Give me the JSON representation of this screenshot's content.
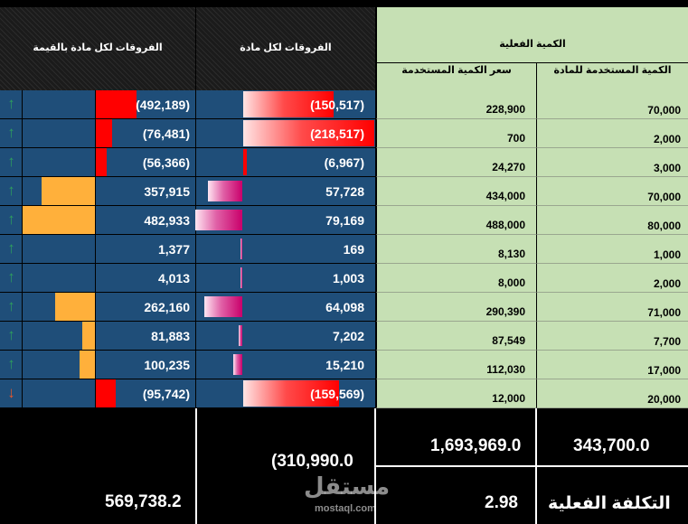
{
  "headers": {
    "diff_value": "الفروقات لكل مادة بالقيمة",
    "diff_qty": "الفروقات لكل مادة",
    "actual_qty": "الكمية الفعلية",
    "price_used": "سعر الكمية المستخدمة",
    "qty_used": "الكمية المستخدمة للمادة"
  },
  "rows": [
    {
      "arrow": "up",
      "value_diff": "(492,189)",
      "value_frac": 0.41,
      "value_type": "red",
      "qty_diff": "(150,517)",
      "qty_frac": 0.69,
      "qty_type": "gradred",
      "price": "228,900",
      "qty": "70,000"
    },
    {
      "arrow": "up",
      "value_diff": "(76,481)",
      "value_frac": 0.16,
      "value_type": "red",
      "qty_diff": "(218,517)",
      "qty_frac": 1.0,
      "qty_type": "gradred",
      "price": "700",
      "qty": "2,000"
    },
    {
      "arrow": "up",
      "value_diff": "(56,366)",
      "value_frac": 0.11,
      "value_type": "red",
      "qty_diff": "(6,967)",
      "qty_frac": 0.03,
      "qty_type": "red",
      "price": "24,270",
      "qty": "3,000"
    },
    {
      "arrow": "up",
      "value_diff": "357,915",
      "value_frac": 0.74,
      "value_type": "orange",
      "qty_diff": "57,728",
      "qty_frac": 0.26,
      "qty_type": "gradpink",
      "price": "434,000",
      "qty": "70,000"
    },
    {
      "arrow": "up",
      "value_diff": "482,933",
      "value_frac": 1.0,
      "value_type": "orange",
      "qty_diff": "79,169",
      "qty_frac": 0.36,
      "qty_type": "gradpink",
      "price": "488,000",
      "qty": "80,000"
    },
    {
      "arrow": "up",
      "value_diff": "1,377",
      "value_frac": 0.0,
      "value_type": "orange",
      "qty_diff": "169",
      "qty_frac": 0.0,
      "qty_type": "gradpink",
      "price": "8,130",
      "qty": "1,000"
    },
    {
      "arrow": "up",
      "value_diff": "4,013",
      "value_frac": 0.0,
      "value_type": "orange",
      "qty_diff": "1,003",
      "qty_frac": 0.0,
      "qty_type": "gradpink",
      "price": "8,000",
      "qty": "2,000"
    },
    {
      "arrow": "up",
      "value_diff": "262,160",
      "value_frac": 0.55,
      "value_type": "orange",
      "qty_diff": "64,098",
      "qty_frac": 0.29,
      "qty_type": "gradpink",
      "price": "290,390",
      "qty": "71,000"
    },
    {
      "arrow": "up",
      "value_diff": "81,883",
      "value_frac": 0.17,
      "value_type": "orange",
      "qty_diff": "7,202",
      "qty_frac": 0.03,
      "qty_type": "gradpink",
      "price": "87,549",
      "qty": "7,700"
    },
    {
      "arrow": "up",
      "value_diff": "100,235",
      "value_frac": 0.21,
      "value_type": "orange",
      "qty_diff": "15,210",
      "qty_frac": 0.07,
      "qty_type": "gradpink",
      "price": "112,030",
      "qty": "17,000"
    },
    {
      "arrow": "down",
      "value_diff": "(95,742)",
      "value_frac": 0.2,
      "value_type": "red",
      "qty_diff": "(159,569)",
      "qty_frac": 0.73,
      "qty_type": "gradred",
      "price": "12,000",
      "qty": "20,000"
    }
  ],
  "totals": {
    "value_total": "569,738.2",
    "qty_total": "(310,990.0",
    "price_total": "1,693,969.0",
    "qty_used_total": "343,700.0",
    "avg_price": "2.98",
    "actual_cost_label": "التكلفة الفعلية"
  },
  "watermark": {
    "arabic": "مستقل",
    "latin": "mostaql.com"
  },
  "colors": {
    "dark_cell": "#1f4e79",
    "green_cell": "#c6e0b4",
    "red": "#ff0000",
    "orange": "#ffb03b",
    "pink": "#c9006b",
    "arrow_up": "#2e9e5e",
    "arrow_down": "#e8572a"
  }
}
